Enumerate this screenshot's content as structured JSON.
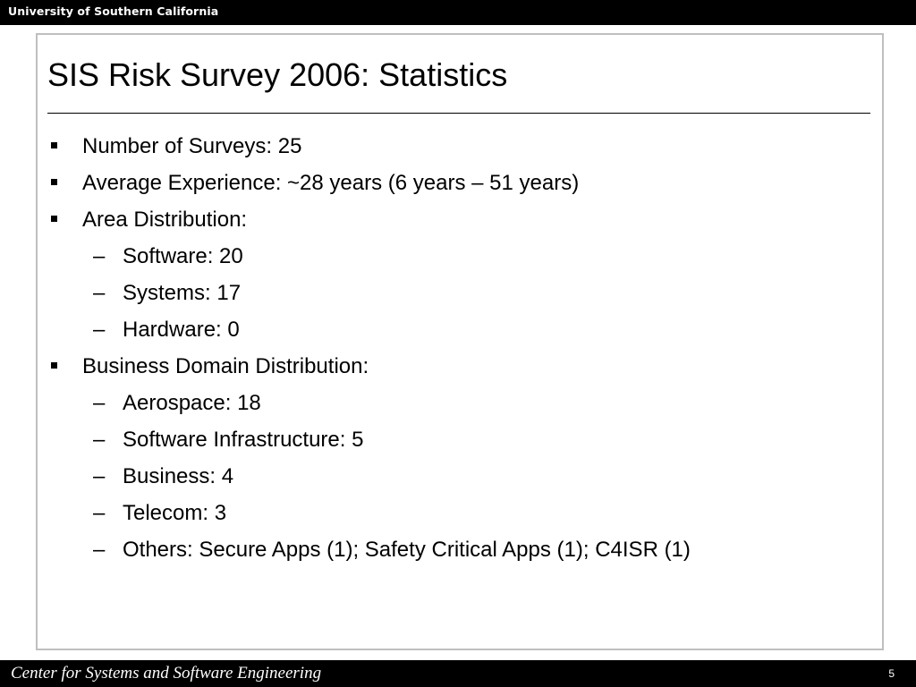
{
  "header": {
    "university": "University of Southern California"
  },
  "slide": {
    "title": "SIS Risk Survey 2006: Statistics",
    "bullets": [
      {
        "text": "Number of Surveys: 25"
      },
      {
        "text": "Average Experience: ~28 years (6 years – 51 years)"
      },
      {
        "text": "Area Distribution:",
        "subitems": [
          "Software: 20",
          "Systems: 17",
          "Hardware: 0"
        ]
      },
      {
        "text": "Business Domain Distribution:",
        "subitems": [
          "Aerospace: 18",
          "Software Infrastructure: 5",
          "Business: 4",
          "Telecom: 3",
          "Others: Secure Apps (1); Safety Critical Apps (1); C4ISR (1)"
        ]
      }
    ]
  },
  "footer": {
    "center_name": "Center for Systems and Software Engineering",
    "page_number": "5"
  }
}
